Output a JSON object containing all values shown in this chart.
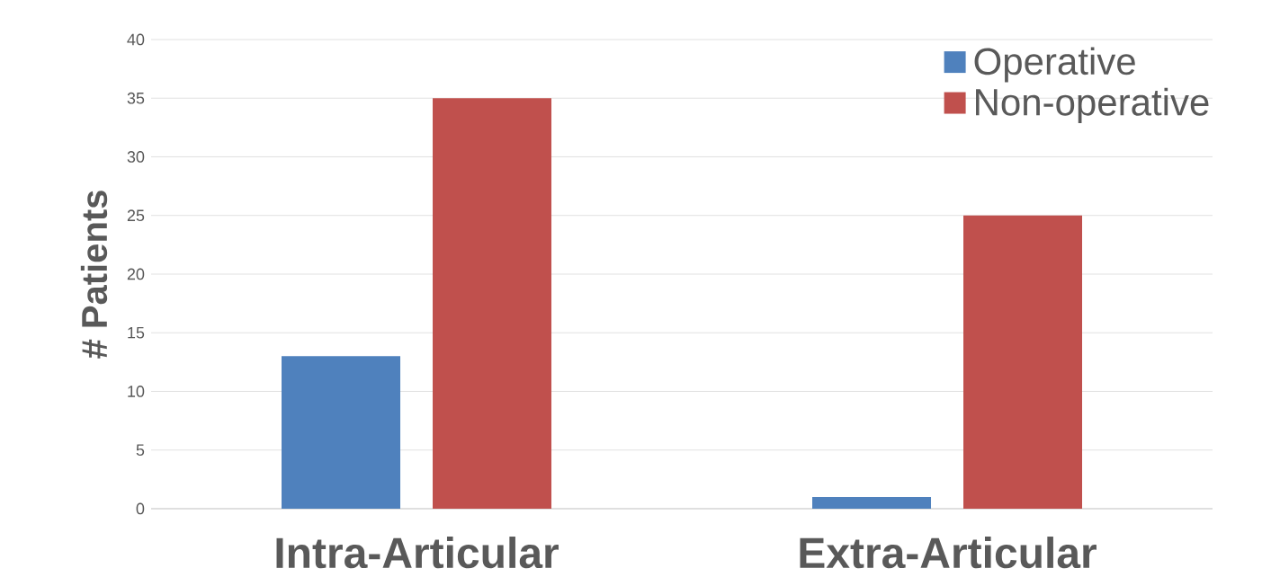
{
  "chart_data": {
    "type": "bar",
    "ylabel": "# Patients",
    "categories": [
      "Intra-Articular",
      "Extra-Articular"
    ],
    "series": [
      {
        "name": "Operative",
        "color": "#4f81bd",
        "values": [
          13,
          1
        ]
      },
      {
        "name": "Non-operative",
        "color": "#c0504d",
        "values": [
          35,
          25
        ]
      }
    ],
    "ylim": [
      0,
      40
    ],
    "yticks": [
      0,
      5,
      10,
      15,
      20,
      25,
      30,
      35,
      40
    ],
    "grid": "y",
    "legend": "top right"
  }
}
